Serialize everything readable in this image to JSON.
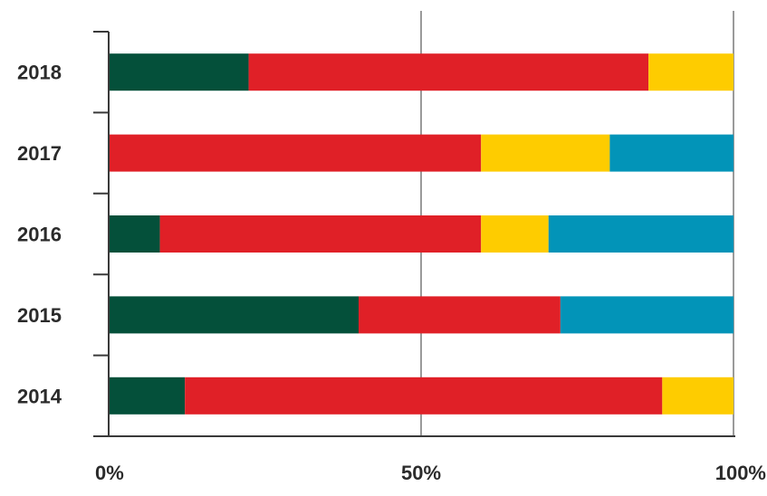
{
  "chart_data": {
    "type": "bar",
    "orientation": "horizontal",
    "stacked": true,
    "normalized": true,
    "categories": [
      "2018",
      "2017",
      "2016",
      "2015",
      "2014"
    ],
    "series": [
      {
        "color": "#04503a",
        "values": [
          22.4,
          0,
          8.2,
          40.0,
          12.2
        ]
      },
      {
        "color": "#e02027",
        "values": [
          64.0,
          59.6,
          51.4,
          32.3,
          76.4
        ]
      },
      {
        "color": "#fecc00",
        "values": [
          13.6,
          20.6,
          10.8,
          0,
          11.4
        ]
      },
      {
        "color": "#0294b8",
        "values": [
          0,
          19.8,
          29.6,
          27.7,
          0
        ]
      }
    ],
    "xlim": [
      0,
      100
    ],
    "xticks": [
      "0%",
      "50%",
      "100%"
    ],
    "xtick_values": [
      0,
      50,
      100
    ],
    "grid": true,
    "legend": "none"
  }
}
